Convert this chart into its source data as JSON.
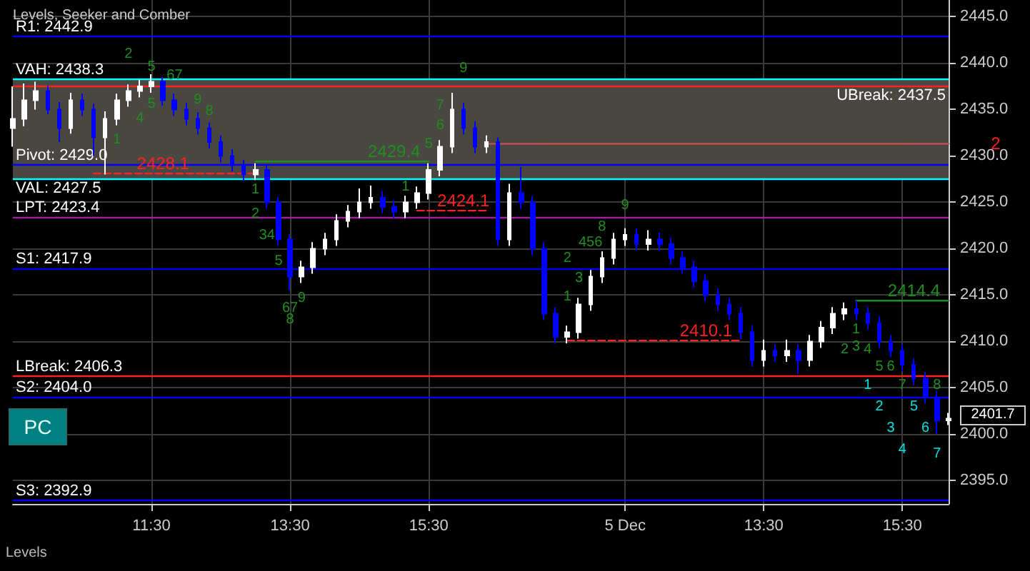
{
  "chart_data": {
    "type": "candlestick",
    "title": "Levels, Seeker and Comber",
    "categories": [
      null,
      null,
      null,
      null,
      null,
      null,
      null,
      null,
      null,
      null,
      null,
      null,
      "11:30",
      null,
      null,
      null,
      null,
      null,
      null,
      null,
      null,
      null,
      null,
      null,
      "13:30",
      null,
      null,
      null,
      null,
      null,
      null,
      null,
      null,
      null,
      null,
      null,
      "15:30",
      null,
      null,
      null,
      null,
      null,
      null,
      null,
      null,
      null,
      null,
      null,
      null,
      null,
      null,
      null,
      null,
      "5 Dec",
      null,
      null,
      null,
      null,
      null,
      null,
      null,
      null,
      null,
      null,
      null,
      "13:30",
      null,
      null,
      null,
      null,
      null,
      null,
      null,
      null,
      null,
      null,
      null,
      "15:30",
      null,
      null,
      null,
      null
    ],
    "ohlc": [
      [
        2433.0,
        2437.5,
        2431.0,
        2434.0
      ],
      [
        2434.0,
        2437.8,
        2433.2,
        2436.0
      ],
      [
        2436.0,
        2438.0,
        2435.0,
        2437.0
      ],
      [
        2437.0,
        2437.6,
        2434.5,
        2435.0
      ],
      [
        2435.0,
        2435.8,
        2431.5,
        2433.0
      ],
      [
        2433.0,
        2436.8,
        2432.4,
        2436.0
      ],
      [
        2436.0,
        2436.7,
        2434.3,
        2435.0
      ],
      [
        2435.0,
        2435.6,
        2430.0,
        2432.0
      ],
      [
        2432.0,
        2434.8,
        2428.0,
        2434.0
      ],
      [
        2434.0,
        2436.7,
        2433.3,
        2436.0
      ],
      [
        2436.0,
        2437.7,
        2435.3,
        2437.0
      ],
      [
        2437.0,
        2438.2,
        2436.3,
        2437.5
      ],
      [
        2437.5,
        2438.8,
        2436.8,
        2438.0
      ],
      [
        2438.0,
        2438.5,
        2435.4,
        2436.0
      ],
      [
        2436.0,
        2436.7,
        2434.3,
        2435.0
      ],
      [
        2435.0,
        2435.7,
        2433.3,
        2434.0
      ],
      [
        2434.0,
        2434.7,
        2432.3,
        2433.0
      ],
      [
        2433.0,
        2433.6,
        2430.8,
        2431.5
      ],
      [
        2431.5,
        2432.2,
        2429.3,
        2430.0
      ],
      [
        2430.0,
        2430.7,
        2428.3,
        2429.0
      ],
      [
        2429.0,
        2429.6,
        2427.3,
        2428.0
      ],
      [
        2428.0,
        2429.2,
        2427.4,
        2428.5
      ],
      [
        2428.5,
        2429.0,
        2424.3,
        2425.0
      ],
      [
        2425.0,
        2425.6,
        2420.3,
        2421.0
      ],
      [
        2421.0,
        2421.6,
        2415.5,
        2417.0
      ],
      [
        2417.0,
        2418.7,
        2416.3,
        2418.0
      ],
      [
        2418.0,
        2420.7,
        2417.3,
        2420.0
      ],
      [
        2420.0,
        2421.7,
        2419.3,
        2421.0
      ],
      [
        2421.0,
        2423.7,
        2420.3,
        2423.0
      ],
      [
        2423.0,
        2424.7,
        2422.3,
        2424.0
      ],
      [
        2424.0,
        2426.5,
        2423.3,
        2425.0
      ],
      [
        2425.0,
        2426.8,
        2424.3,
        2425.5
      ],
      [
        2425.5,
        2426.2,
        2423.8,
        2424.5
      ],
      [
        2424.5,
        2425.2,
        2423.3,
        2424.0
      ],
      [
        2424.0,
        2425.7,
        2423.3,
        2425.0
      ],
      [
        2425.0,
        2426.7,
        2424.3,
        2426.0
      ],
      [
        2426.0,
        2429.2,
        2425.3,
        2428.5
      ],
      [
        2428.5,
        2431.7,
        2427.8,
        2431.0
      ],
      [
        2431.0,
        2436.8,
        2430.3,
        2435.0
      ],
      [
        2435.0,
        2435.7,
        2432.3,
        2433.0
      ],
      [
        2433.0,
        2433.7,
        2430.3,
        2431.0
      ],
      [
        2431.0,
        2432.2,
        2430.3,
        2431.5
      ],
      [
        2431.5,
        2432.0,
        2420.3,
        2421.0
      ],
      [
        2421.0,
        2427.0,
        2420.3,
        2426.0
      ],
      [
        2426.0,
        2428.8,
        2424.3,
        2425.0
      ],
      [
        2425.0,
        2425.7,
        2419.3,
        2420.0
      ],
      [
        2420.0,
        2420.7,
        2412.3,
        2413.0
      ],
      [
        2413.0,
        2413.7,
        2409.8,
        2410.5
      ],
      [
        2410.5,
        2411.7,
        2409.8,
        2411.0
      ],
      [
        2411.0,
        2414.7,
        2410.3,
        2414.0
      ],
      [
        2414.0,
        2417.7,
        2413.3,
        2417.0
      ],
      [
        2417.0,
        2419.7,
        2416.3,
        2419.0
      ],
      [
        2419.0,
        2421.7,
        2418.3,
        2421.0
      ],
      [
        2421.0,
        2422.2,
        2420.3,
        2421.5
      ],
      [
        2421.5,
        2422.2,
        2419.8,
        2420.5
      ],
      [
        2420.5,
        2422.0,
        2419.8,
        2421.0
      ],
      [
        2421.0,
        2421.7,
        2419.8,
        2420.5
      ],
      [
        2420.5,
        2421.2,
        2418.3,
        2419.0
      ],
      [
        2419.0,
        2419.7,
        2417.3,
        2418.0
      ],
      [
        2418.0,
        2418.7,
        2415.8,
        2416.5
      ],
      [
        2416.5,
        2417.2,
        2414.3,
        2415.0
      ],
      [
        2415.0,
        2415.7,
        2413.3,
        2414.0
      ],
      [
        2414.0,
        2414.7,
        2412.3,
        2413.0
      ],
      [
        2413.0,
        2413.7,
        2410.3,
        2411.0
      ],
      [
        2411.0,
        2411.7,
        2407.3,
        2408.0
      ],
      [
        2408.0,
        2410.2,
        2407.3,
        2409.0
      ],
      [
        2409.0,
        2409.7,
        2407.8,
        2408.5
      ],
      [
        2408.5,
        2410.2,
        2407.8,
        2409.0
      ],
      [
        2409.0,
        2409.7,
        2406.5,
        2408.0
      ],
      [
        2408.0,
        2410.7,
        2407.3,
        2410.0
      ],
      [
        2410.0,
        2412.2,
        2409.3,
        2411.5
      ],
      [
        2411.5,
        2413.7,
        2410.8,
        2413.0
      ],
      [
        2413.0,
        2414.2,
        2412.3,
        2413.5
      ],
      [
        2413.5,
        2414.4,
        2412.3,
        2413.0
      ],
      [
        2413.0,
        2413.7,
        2411.3,
        2412.0
      ],
      [
        2412.0,
        2412.7,
        2409.3,
        2410.0
      ],
      [
        2410.0,
        2410.7,
        2408.3,
        2409.0
      ],
      [
        2409.0,
        2409.7,
        2406.8,
        2407.5
      ],
      [
        2407.5,
        2408.2,
        2405.3,
        2406.0
      ],
      [
        2406.0,
        2406.7,
        2403.3,
        2404.0
      ],
      [
        2404.0,
        2404.7,
        2400.0,
        2401.5
      ],
      [
        2401.5,
        2402.3,
        2401.0,
        2401.7
      ]
    ],
    "colors": [
      "#ffffff",
      "#ffffff",
      "#ffffff",
      "#0000ff",
      "#0000ff",
      "#ffffff",
      "#0000ff",
      "#0000ff",
      "#ffffff",
      "#ffffff",
      "#ffffff",
      "#ffffff",
      "#ffffff",
      "#0000ff",
      "#0000ff",
      "#0000ff",
      "#0000ff",
      "#0000ff",
      "#0000ff",
      "#0000ff",
      "#0000ff",
      "#ffffff",
      "#0000ff",
      "#0000ff",
      "#0000ff",
      "#ffffff",
      "#ffffff",
      "#ffffff",
      "#ffffff",
      "#ffffff",
      "#ffffff",
      "#ffffff",
      "#0000ff",
      "#0000ff",
      "#ffffff",
      "#ffffff",
      "#ffffff",
      "#ffffff",
      "#ffffff",
      "#0000ff",
      "#0000ff",
      "#ffffff",
      "#0000ff",
      "#ffffff",
      "#0000ff",
      "#0000ff",
      "#0000ff",
      "#0000ff",
      "#ffffff",
      "#ffffff",
      "#ffffff",
      "#ffffff",
      "#ffffff",
      "#ffffff",
      "#0000ff",
      "#ffffff",
      "#0000ff",
      "#0000ff",
      "#0000ff",
      "#0000ff",
      "#0000ff",
      "#0000ff",
      "#0000ff",
      "#0000ff",
      "#0000ff",
      "#ffffff",
      "#0000ff",
      "#ffffff",
      "#0000ff",
      "#ffffff",
      "#ffffff",
      "#ffffff",
      "#ffffff",
      "#0000ff",
      "#0000ff",
      "#0000ff",
      "#0000ff",
      "#0000ff",
      "#0000ff",
      "#0000ff",
      "#0000ff",
      "#ffffff"
    ],
    "series": [
      {
        "type": "line",
        "color": "#ff2020",
        "line_style": "dashed",
        "values": [
          null,
          null,
          null,
          null,
          null,
          null,
          null,
          2428.1,
          2428.1,
          2428.1,
          2428.1,
          2428.1,
          2428.1,
          2428.1,
          2428.1,
          2428.1,
          2428.1,
          2428.1,
          2428.1,
          2428.1,
          2428.1,
          2428.1,
          null,
          null,
          null,
          null,
          null,
          null,
          null,
          null,
          null,
          null,
          null,
          null,
          null,
          null,
          null,
          null,
          null,
          null,
          null,
          null,
          null,
          null,
          null,
          null,
          null,
          null,
          null,
          null,
          null,
          null,
          null,
          null,
          null,
          null,
          null,
          null,
          null,
          null,
          null,
          null,
          null,
          null,
          null,
          null,
          null,
          null,
          null,
          null,
          null,
          null,
          null,
          null,
          null,
          null,
          null,
          null,
          null,
          null,
          null,
          null
        ],
        "value_labels": [
          null,
          null,
          null,
          null,
          null,
          null,
          null,
          null,
          null,
          null,
          null,
          null,
          null,
          "2428.1",
          null,
          null,
          null,
          null,
          null,
          null,
          null,
          null,
          null,
          null,
          null,
          null,
          null,
          null,
          null,
          null,
          null,
          null,
          null,
          null,
          null,
          null,
          null,
          null,
          null,
          null,
          null,
          null,
          null,
          null,
          null,
          null,
          null,
          null,
          null,
          null,
          null,
          null,
          null,
          null,
          null,
          null,
          null,
          null,
          null,
          null,
          null,
          null,
          null,
          null,
          null,
          null,
          null,
          null,
          null,
          null,
          null,
          null,
          null,
          null,
          null,
          null,
          null,
          null,
          null,
          null,
          null,
          null
        ]
      },
      {
        "type": "line",
        "color": "#1f8f1f",
        "line_style": "solid",
        "values": [
          null,
          null,
          null,
          null,
          null,
          null,
          null,
          null,
          null,
          null,
          null,
          null,
          null,
          null,
          null,
          null,
          null,
          null,
          null,
          null,
          null,
          2429.4,
          2429.4,
          2429.4,
          2429.4,
          2429.4,
          2429.4,
          2429.4,
          2429.4,
          2429.4,
          2429.4,
          2429.4,
          2429.4,
          2429.4,
          2429.4,
          2429.4,
          2429.4,
          null,
          null,
          null,
          null,
          null,
          null,
          null,
          null,
          null,
          null,
          null,
          null,
          null,
          null,
          null,
          null,
          null,
          null,
          null,
          null,
          null,
          null,
          null,
          null,
          null,
          null,
          null,
          null,
          null,
          null,
          null,
          null,
          null,
          null,
          null,
          null,
          null,
          null,
          null,
          null,
          null,
          null,
          null,
          null,
          null
        ],
        "value_labels": [
          null,
          null,
          null,
          null,
          null,
          null,
          null,
          null,
          null,
          null,
          null,
          null,
          null,
          null,
          null,
          null,
          null,
          null,
          null,
          null,
          null,
          null,
          null,
          null,
          null,
          null,
          null,
          null,
          null,
          null,
          null,
          null,
          null,
          "2429.4",
          null,
          null,
          null,
          null,
          null,
          null,
          null,
          null,
          null,
          null,
          null,
          null,
          null,
          null,
          null,
          null,
          null,
          null,
          null,
          null,
          null,
          null,
          null,
          null,
          null,
          null,
          null,
          null,
          null,
          null,
          null,
          null,
          null,
          null,
          null,
          null,
          null,
          null,
          null,
          null,
          null,
          null,
          null,
          null,
          null,
          null,
          null,
          null
        ]
      },
      {
        "type": "line",
        "color": "#ff2020",
        "line_style": "dashed",
        "values": [
          null,
          null,
          null,
          null,
          null,
          null,
          null,
          null,
          null,
          null,
          null,
          null,
          null,
          null,
          null,
          null,
          null,
          null,
          null,
          null,
          null,
          null,
          null,
          null,
          null,
          null,
          null,
          null,
          null,
          null,
          null,
          null,
          null,
          null,
          null,
          2424.1,
          2424.1,
          2424.1,
          2424.1,
          2424.1,
          2424.1,
          2424.1,
          null,
          null,
          null,
          null,
          null,
          null,
          null,
          null,
          null,
          null,
          null,
          null,
          null,
          null,
          null,
          null,
          null,
          null,
          null,
          null,
          null,
          null,
          null,
          null,
          null,
          null,
          null,
          null,
          null,
          null,
          null,
          null,
          null,
          null,
          null,
          null,
          null,
          null,
          null,
          null
        ],
        "value_labels": [
          null,
          null,
          null,
          null,
          null,
          null,
          null,
          null,
          null,
          null,
          null,
          null,
          null,
          null,
          null,
          null,
          null,
          null,
          null,
          null,
          null,
          null,
          null,
          null,
          null,
          null,
          null,
          null,
          null,
          null,
          null,
          null,
          null,
          null,
          null,
          null,
          null,
          null,
          null,
          "2424.1",
          null,
          null,
          null,
          null,
          null,
          null,
          null,
          null,
          null,
          null,
          null,
          null,
          null,
          null,
          null,
          null,
          null,
          null,
          null,
          null,
          null,
          null,
          null,
          null,
          null,
          null,
          null,
          null,
          null,
          null,
          null,
          null,
          null,
          null,
          null,
          null,
          null,
          null,
          null,
          null,
          null,
          null
        ]
      },
      {
        "type": "line",
        "color": "#c0504d",
        "line_style": "solid",
        "values": [
          null,
          null,
          null,
          null,
          null,
          null,
          null,
          null,
          null,
          null,
          null,
          null,
          null,
          null,
          null,
          null,
          null,
          null,
          null,
          null,
          null,
          null,
          null,
          null,
          null,
          null,
          null,
          null,
          null,
          null,
          null,
          null,
          null,
          null,
          null,
          null,
          null,
          null,
          null,
          null,
          null,
          2431.3,
          2431.3,
          2431.3,
          2431.3,
          2431.3,
          2431.3,
          2431.3,
          2431.3,
          2431.3,
          2431.3,
          2431.3,
          2431.3,
          2431.3,
          2431.3,
          2431.3,
          2431.3,
          2431.3,
          2431.3,
          2431.3,
          2431.3,
          2431.3,
          2431.3,
          2431.3,
          2431.3,
          2431.3,
          2431.3,
          2431.3,
          2431.3,
          2431.3,
          2431.3,
          2431.3,
          2431.3,
          2431.3,
          2431.3,
          2431.3,
          2431.3,
          2431.3,
          2431.3,
          2431.3,
          2431.3,
          2431.3
        ]
      },
      {
        "type": "line",
        "color": "#ff2020",
        "line_style": "dashed",
        "values": [
          null,
          null,
          null,
          null,
          null,
          null,
          null,
          null,
          null,
          null,
          null,
          null,
          null,
          null,
          null,
          null,
          null,
          null,
          null,
          null,
          null,
          null,
          null,
          null,
          null,
          null,
          null,
          null,
          null,
          null,
          null,
          null,
          null,
          null,
          null,
          null,
          null,
          null,
          null,
          null,
          null,
          null,
          null,
          null,
          null,
          null,
          null,
          null,
          2410.1,
          2410.1,
          2410.1,
          2410.1,
          2410.1,
          2410.1,
          2410.1,
          2410.1,
          2410.1,
          2410.1,
          2410.1,
          2410.1,
          2410.1,
          2410.1,
          2410.1,
          2410.1,
          null,
          null,
          null,
          null,
          null,
          null,
          null,
          null,
          null,
          null,
          null,
          null,
          null,
          null,
          null,
          null,
          null,
          null
        ],
        "value_labels": [
          null,
          null,
          null,
          null,
          null,
          null,
          null,
          null,
          null,
          null,
          null,
          null,
          null,
          null,
          null,
          null,
          null,
          null,
          null,
          null,
          null,
          null,
          null,
          null,
          null,
          null,
          null,
          null,
          null,
          null,
          null,
          null,
          null,
          null,
          null,
          null,
          null,
          null,
          null,
          null,
          null,
          null,
          null,
          null,
          null,
          null,
          null,
          null,
          null,
          null,
          null,
          null,
          null,
          null,
          null,
          null,
          null,
          null,
          null,
          null,
          "2410.1",
          null,
          null,
          null,
          null,
          null,
          null,
          null,
          null,
          null,
          null,
          null,
          null,
          null,
          null,
          null,
          null,
          null,
          null,
          null,
          null,
          null
        ]
      },
      {
        "type": "line",
        "color": "#1f8f1f",
        "line_style": "solid",
        "values": [
          null,
          null,
          null,
          null,
          null,
          null,
          null,
          null,
          null,
          null,
          null,
          null,
          null,
          null,
          null,
          null,
          null,
          null,
          null,
          null,
          null,
          null,
          null,
          null,
          null,
          null,
          null,
          null,
          null,
          null,
          null,
          null,
          null,
          null,
          null,
          null,
          null,
          null,
          null,
          null,
          null,
          null,
          null,
          null,
          null,
          null,
          null,
          null,
          null,
          null,
          null,
          null,
          null,
          null,
          null,
          null,
          null,
          null,
          null,
          null,
          null,
          null,
          null,
          null,
          null,
          null,
          null,
          null,
          null,
          null,
          null,
          null,
          null,
          2414.4,
          2414.4,
          2414.4,
          2414.4,
          2414.4,
          2414.4,
          2414.4,
          2414.4,
          2414.4
        ],
        "value_labels": [
          null,
          null,
          null,
          null,
          null,
          null,
          null,
          null,
          null,
          null,
          null,
          null,
          null,
          null,
          null,
          null,
          null,
          null,
          null,
          null,
          null,
          null,
          null,
          null,
          null,
          null,
          null,
          null,
          null,
          null,
          null,
          null,
          null,
          null,
          null,
          null,
          null,
          null,
          null,
          null,
          null,
          null,
          null,
          null,
          null,
          null,
          null,
          null,
          null,
          null,
          null,
          null,
          null,
          null,
          null,
          null,
          null,
          null,
          null,
          null,
          null,
          null,
          null,
          null,
          null,
          null,
          null,
          null,
          null,
          null,
          null,
          null,
          null,
          null,
          null,
          null,
          null,
          null,
          "2414.4",
          null,
          null,
          null
        ]
      }
    ],
    "ylim": [
      2392.5,
      2446.8
    ],
    "yticks": [
      {
        "value": 2395,
        "label": "2395.0"
      },
      {
        "value": 2400,
        "label": "2400.0"
      },
      {
        "value": 2405,
        "label": "2405.0"
      },
      {
        "value": 2410,
        "label": "2410.0"
      },
      {
        "value": 2415,
        "label": "2415.0"
      },
      {
        "value": 2420,
        "label": "2420.0"
      },
      {
        "value": 2425,
        "label": "2425.0"
      },
      {
        "value": 2430,
        "label": "2430.0"
      },
      {
        "value": 2435,
        "label": "2435.0"
      },
      {
        "value": 2440,
        "label": "2440.0"
      },
      {
        "value": 2445,
        "label": "2445.0"
      }
    ],
    "grid": true,
    "ref_lines": [
      {
        "axis": "y",
        "value": 2442.9,
        "label": "R1: 2442.9",
        "color": "#0000ff"
      },
      {
        "axis": "y",
        "value": 2438.3,
        "label": "VAH: 2438.3",
        "color": "#00ffff"
      },
      {
        "axis": "y",
        "value": 2437.5,
        "label": "UBreak: 2437.5",
        "color": "#ff2020"
      },
      {
        "axis": "y",
        "value": 2429.0,
        "label": "Pivot: 2429.0",
        "color": "#0000ff"
      },
      {
        "axis": "y",
        "value": 2427.5,
        "label": "VAL: 2427.5",
        "color": "#00ffff"
      },
      {
        "axis": "y",
        "value": 2423.4,
        "label": "LPT: 2423.4",
        "color": "#a020a0"
      },
      {
        "axis": "y",
        "value": 2417.9,
        "label": "S1: 2417.9",
        "color": "#0000ff"
      },
      {
        "axis": "y",
        "value": 2406.3,
        "label": "LBreak: 2406.3",
        "color": "#ff2020"
      },
      {
        "axis": "y",
        "value": 2404.0,
        "label": "S2: 2404.0",
        "color": "#0000ff"
      },
      {
        "axis": "y",
        "value": 2392.9,
        "label": "S3: 2392.9",
        "color": "#0000ff"
      }
    ],
    "bands": [
      {
        "axis": "y",
        "from": 2427.5,
        "to": 2438.3,
        "color": "#4a4742"
      }
    ],
    "annotations": [
      "PC",
      "Levels",
      "2401.7",
      "2",
      "2",
      "5",
      "67",
      "1",
      "5",
      "9",
      "8",
      "4",
      "1",
      "2",
      "34",
      "5",
      "67",
      "8",
      "9",
      "1",
      "5",
      "6",
      "7",
      "9",
      "1",
      "2",
      "3",
      "456",
      "8",
      "9",
      "1",
      "2",
      "3",
      "4",
      "5",
      "6",
      "7",
      "8",
      "1",
      "2",
      "3",
      "4",
      "5",
      "6",
      "7"
    ]
  }
}
